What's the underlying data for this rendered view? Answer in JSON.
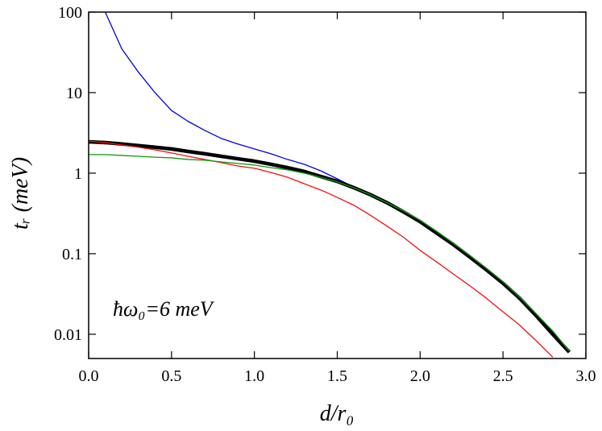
{
  "chart_data": {
    "type": "line",
    "x": [
      0,
      0.1,
      0.2,
      0.3,
      0.4,
      0.5,
      0.6,
      0.7,
      0.8,
      0.9,
      1.0,
      1.1,
      1.2,
      1.3,
      1.4,
      1.5,
      1.6,
      1.7,
      1.8,
      1.9,
      2.0,
      2.1,
      2.2,
      2.3,
      2.4,
      2.5,
      2.6,
      2.7,
      2.8,
      2.9
    ],
    "series": [
      {
        "color": "#0000dd",
        "width": 1.3,
        "values": [
          null,
          100,
          35,
          18,
          10,
          6,
          4.4,
          3.4,
          2.7,
          2.3,
          2.0,
          1.74,
          1.48,
          1.29,
          1.07,
          0.85,
          0.67,
          0.55,
          0.43,
          0.33,
          0.25,
          0.18,
          0.13,
          0.091,
          0.063,
          0.043,
          0.028,
          0.017,
          0.01,
          0.006
        ]
      },
      {
        "color": "#000000",
        "width": 4.5,
        "values": [
          2.45,
          2.4,
          2.3,
          2.2,
          2.1,
          2.0,
          1.86,
          1.74,
          1.62,
          1.51,
          1.41,
          1.29,
          1.17,
          1.05,
          0.91,
          0.79,
          0.66,
          0.54,
          0.43,
          0.33,
          0.25,
          0.18,
          0.13,
          0.091,
          0.063,
          0.043,
          0.028,
          0.017,
          0.01,
          0.006
        ]
      },
      {
        "color": "#ee1111",
        "width": 1.3,
        "values": [
          2.5,
          2.4,
          2.24,
          2.1,
          1.95,
          1.78,
          1.62,
          1.48,
          1.35,
          1.23,
          1.15,
          1.02,
          0.89,
          0.74,
          0.62,
          0.5,
          0.4,
          0.3,
          0.22,
          0.16,
          0.11,
          0.079,
          0.056,
          0.04,
          0.028,
          0.019,
          0.013,
          0.0083,
          0.0052,
          null
        ]
      },
      {
        "color": "#119911",
        "width": 1.3,
        "values": [
          1.7,
          1.7,
          1.66,
          1.62,
          1.58,
          1.55,
          1.48,
          1.45,
          1.38,
          1.32,
          1.26,
          1.17,
          1.1,
          1.0,
          0.89,
          0.78,
          0.66,
          0.54,
          0.43,
          0.34,
          0.26,
          0.19,
          0.135,
          0.095,
          0.066,
          0.045,
          0.029,
          0.018,
          0.011,
          0.0062
        ]
      }
    ],
    "xlabel": "d/r₀",
    "ylabel": "tᵣ (meV)",
    "annotation": "ħω₀=6 meV",
    "xlim": [
      0,
      3
    ],
    "ylim": [
      0.005,
      100
    ],
    "ylog": true,
    "xticks": [
      {
        "value": 0,
        "label": "0.0"
      },
      {
        "value": 0.5,
        "label": "0.5"
      },
      {
        "value": 1,
        "label": "1.0"
      },
      {
        "value": 1.5,
        "label": "1.5"
      },
      {
        "value": 2,
        "label": "2.0"
      },
      {
        "value": 2.5,
        "label": "2.5"
      },
      {
        "value": 3,
        "label": "3.0"
      }
    ],
    "yticks": [
      0.01,
      0.1,
      1,
      10,
      100
    ]
  }
}
